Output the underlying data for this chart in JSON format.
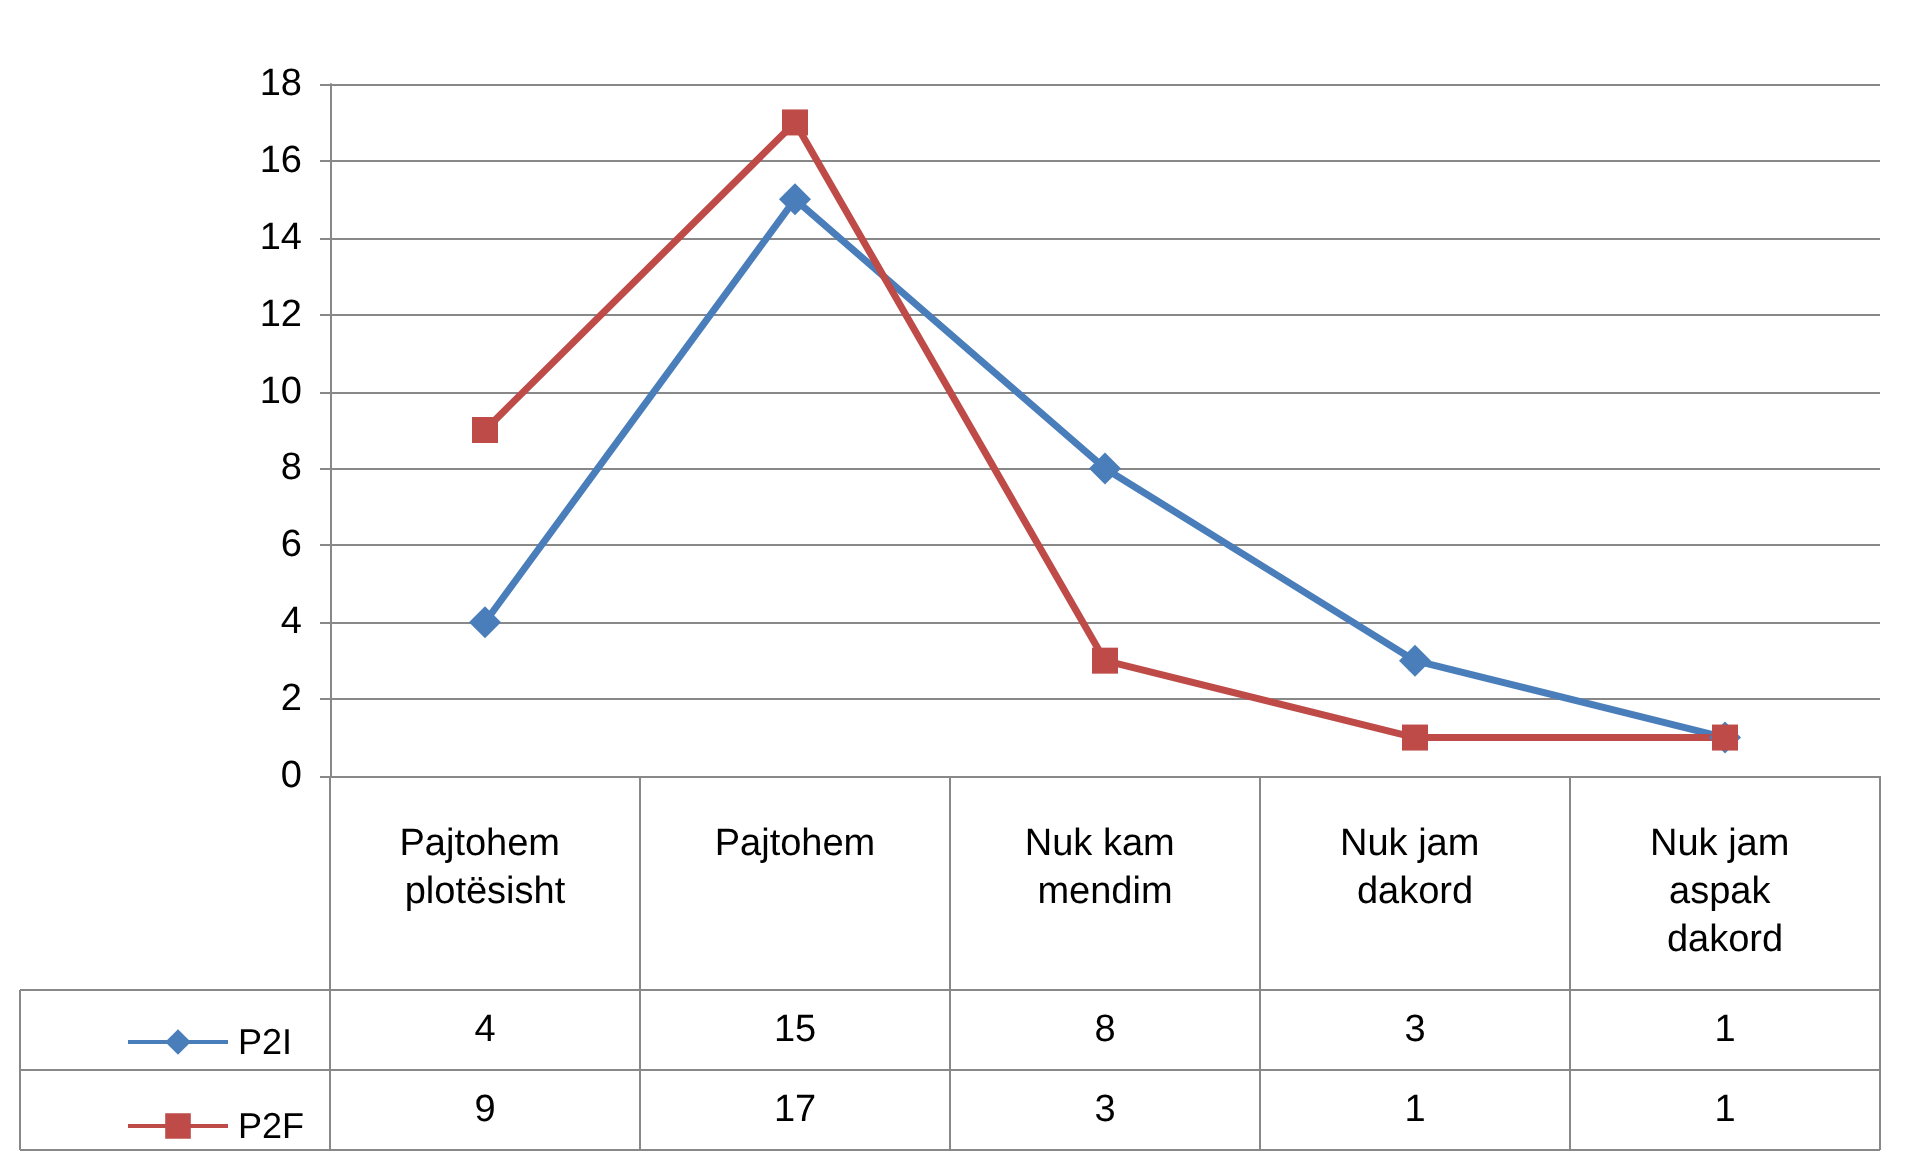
{
  "chart_data": {
    "type": "line",
    "categories": [
      "Pajtohem plotësisht",
      "Pajtohem",
      "Nuk kam mendim",
      "Nuk jam dakord",
      "Nuk jam aspak dakord"
    ],
    "series": [
      {
        "name": "P2I",
        "color": "#4a7ebb",
        "marker": "diamond",
        "values": [
          4,
          15,
          8,
          3,
          1
        ]
      },
      {
        "name": "P2F",
        "color": "#be4b48",
        "marker": "square",
        "values": [
          9,
          17,
          3,
          1,
          1
        ]
      }
    ],
    "ylim": [
      0,
      18
    ],
    "yticks": [
      0,
      2,
      4,
      6,
      8,
      10,
      12,
      14,
      16,
      18
    ],
    "grid": "y",
    "legend": "bottom left",
    "data_labels": true
  }
}
